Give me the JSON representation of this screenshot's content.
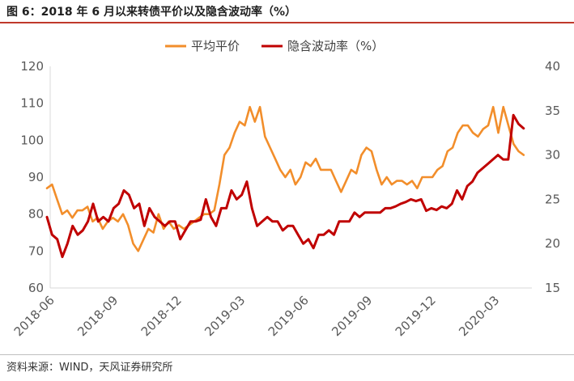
{
  "header": {
    "title": "图 6：2018 年 6 月以来转债平价以及隐含波动率（%）"
  },
  "footer": {
    "source": "资料来源：WIND，天风证券研究所"
  },
  "colors": {
    "parity": "#f28e2b",
    "iv": "#c00000",
    "title_rule": "#c0392b"
  },
  "chart_data": {
    "type": "line",
    "title": "",
    "legend": {
      "placement": "top",
      "entries": [
        "平均平价",
        "隐含波动率（%）"
      ]
    },
    "x_tick_labels": [
      "2018-06",
      "2018-09",
      "2018-12",
      "2019-03",
      "2019-06",
      "2019-09",
      "2019-12",
      "2020-03"
    ],
    "x_range": [
      0,
      96
    ],
    "y_left": {
      "min": 60,
      "max": 120,
      "step": 10,
      "ticks": [
        60,
        70,
        80,
        90,
        100,
        110,
        120
      ]
    },
    "y_right": {
      "min": 15,
      "max": 40,
      "step": 5,
      "ticks": [
        15,
        20,
        25,
        30,
        35,
        40
      ]
    },
    "grid": false,
    "series": [
      {
        "name": "平均平价",
        "axis": "left",
        "values": [
          87,
          88,
          84,
          80,
          81,
          79,
          81,
          81,
          82,
          78,
          79,
          76,
          78,
          79,
          78,
          80,
          77,
          72,
          70,
          73,
          76,
          75,
          80,
          76,
          78,
          76,
          77,
          76,
          77,
          78,
          79,
          80,
          80,
          81,
          88,
          96,
          98,
          102,
          105,
          104,
          109,
          105,
          109,
          101,
          98,
          95,
          92,
          90,
          92,
          88,
          90,
          94,
          93,
          95,
          92,
          92,
          92,
          89,
          86,
          89,
          92,
          91,
          96,
          98,
          97,
          92,
          88,
          90,
          88,
          89,
          89,
          88,
          89,
          87,
          90,
          90,
          90,
          92,
          93,
          97,
          98,
          102,
          104,
          104,
          102,
          101,
          103,
          104,
          109,
          102,
          109,
          104,
          99,
          97,
          96
        ],
        "color": "#f28e2b"
      },
      {
        "name": "隐含波动率（%）",
        "axis": "right",
        "values": [
          23,
          21,
          20.5,
          18.5,
          20,
          22,
          21,
          21.5,
          22.5,
          24.5,
          22.5,
          23,
          22.5,
          24,
          24.5,
          26,
          25.5,
          24,
          24.5,
          22,
          24,
          23,
          22.5,
          22,
          22.5,
          22.5,
          20.5,
          21.5,
          22.5,
          22.5,
          22.7,
          25,
          23,
          22,
          24,
          24,
          26,
          25,
          25.5,
          27,
          24,
          22,
          22.5,
          23,
          22.5,
          22.5,
          21.5,
          22,
          22,
          21,
          20,
          20.5,
          19.5,
          21,
          21,
          21.5,
          21,
          22.5,
          22.5,
          22.5,
          23.5,
          23,
          23.5,
          23.5,
          23.5,
          23.5,
          24,
          24,
          24.2,
          24.5,
          24.7,
          25,
          24.8,
          25,
          23.7,
          24,
          23.8,
          24.2,
          24,
          24.5,
          26,
          25,
          26.5,
          27,
          28,
          28.5,
          29,
          29.5,
          30,
          29.5,
          29.5,
          34.5,
          33.5,
          33
        ]
      }
    ]
  }
}
